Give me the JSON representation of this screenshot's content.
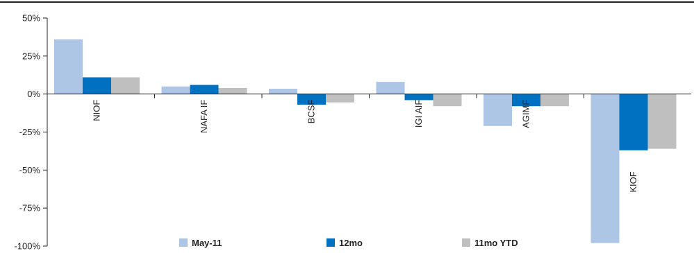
{
  "chart_data": {
    "type": "bar",
    "categories": [
      "NIOF",
      "NAFA IF",
      "BCSF",
      "IGI AIF",
      "AGIMF",
      "KIOF"
    ],
    "series": [
      {
        "name": "May-11",
        "color": "#aec6e6",
        "values": [
          36,
          5,
          3.5,
          8,
          -21,
          -98
        ]
      },
      {
        "name": "12mo",
        "color": "#0070c0",
        "values": [
          11,
          6,
          -7,
          -4,
          -8,
          -37
        ]
      },
      {
        "name": "11mo YTD",
        "color": "#bfbfbf",
        "values": [
          11,
          4,
          -5.5,
          -8,
          -8,
          -36
        ]
      }
    ],
    "yticks": [
      "50%",
      "25%",
      "0%",
      "-25%",
      "-50%",
      "-75%",
      "-100%"
    ],
    "ytick_values": [
      50,
      25,
      0,
      -25,
      -50,
      -75,
      -100
    ],
    "ylim": [
      -100,
      50
    ],
    "title": "",
    "xlabel": "",
    "ylabel": "",
    "grid": false,
    "legend": "bottom"
  }
}
